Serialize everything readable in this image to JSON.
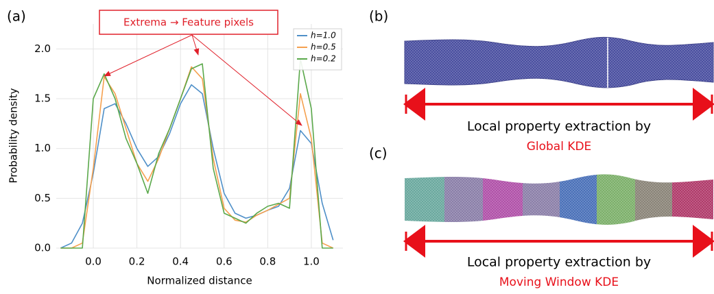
{
  "chart_data": {
    "type": "line",
    "panel_label": "(a)",
    "annotation": "Extrema → Feature pixels",
    "x_label": "Normalized distance",
    "y_label": "Probability density",
    "x": [
      -0.15,
      -0.1,
      -0.05,
      0,
      0.05,
      0.1,
      0.15,
      0.2,
      0.25,
      0.3,
      0.35,
      0.4,
      0.45,
      0.5,
      0.55,
      0.6,
      0.65,
      0.7,
      0.75,
      0.8,
      0.85,
      0.9,
      0.95,
      1.0,
      1.05,
      1.1
    ],
    "series": [
      {
        "name": "h=1.0",
        "color": "#4e8fc8",
        "values": [
          0,
          0.05,
          0.25,
          0.75,
          1.4,
          1.45,
          1.25,
          1.0,
          0.82,
          0.92,
          1.15,
          1.45,
          1.64,
          1.55,
          1.0,
          0.55,
          0.35,
          0.3,
          0.33,
          0.38,
          0.42,
          0.6,
          1.18,
          1.05,
          0.45,
          0.08
        ]
      },
      {
        "name": "h=0.5",
        "color": "#f5a04e",
        "values": [
          0,
          0,
          0.05,
          0.8,
          1.72,
          1.55,
          1.2,
          0.85,
          0.67,
          0.9,
          1.2,
          1.5,
          1.82,
          1.7,
          0.9,
          0.4,
          0.28,
          0.26,
          0.33,
          0.38,
          0.44,
          0.5,
          1.55,
          1.1,
          0.05,
          0
        ]
      },
      {
        "name": "h=0.2",
        "color": "#5aa84a",
        "values": [
          0,
          0,
          0,
          1.5,
          1.75,
          1.5,
          1.1,
          0.85,
          0.55,
          0.95,
          1.2,
          1.5,
          1.8,
          1.85,
          0.8,
          0.35,
          0.3,
          0.25,
          0.35,
          0.42,
          0.45,
          0.4,
          1.9,
          1.4,
          0,
          0
        ]
      }
    ],
    "xlim": [
      -0.17,
      1.145
    ],
    "ylim": [
      0,
      2.25
    ],
    "xticks": [
      {
        "value": 0,
        "label": "0.0"
      },
      0.2,
      0.4,
      0.6,
      0.8,
      {
        "value": 1,
        "label": "1.0"
      }
    ],
    "yticks": [
      {
        "value": 0,
        "label": "0.0"
      },
      0.5,
      {
        "value": 1,
        "label": "1.0"
      },
      1.5,
      {
        "value": 2,
        "label": "2.0"
      }
    ],
    "grid": true,
    "legend": "upper right"
  },
  "panels": [
    {
      "label": "(b)",
      "caption": "Local property extraction by",
      "method": "Global KDE"
    },
    {
      "label": "(c)",
      "caption": "Local property extraction by",
      "method": "Moving Window KDE"
    }
  ]
}
